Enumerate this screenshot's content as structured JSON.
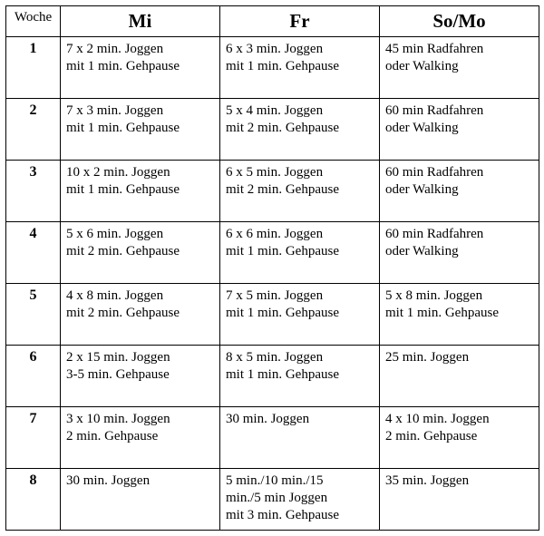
{
  "columns": {
    "woche": "Woche",
    "mi": "Mi",
    "fr": "Fr",
    "somo": "So/Mo"
  },
  "rows": [
    {
      "week": "1",
      "mi": {
        "l1": "7 x 2 min. Joggen",
        "l2": "mit 1 min. Gehpause"
      },
      "fr": {
        "l1": "6 x 3 min. Joggen",
        "l2": "mit 1 min. Gehpause"
      },
      "somo": {
        "l1": "45 min Radfahren",
        "l2": "oder Walking"
      }
    },
    {
      "week": "2",
      "mi": {
        "l1": "7 x 3 min. Joggen",
        "l2": "mit 1 min. Gehpause"
      },
      "fr": {
        "l1": "5 x 4 min. Joggen",
        "l2": "mit 2 min. Gehpause"
      },
      "somo": {
        "l1": "60 min Radfahren",
        "l2": "oder Walking"
      }
    },
    {
      "week": "3",
      "mi": {
        "l1": "10 x 2 min. Joggen",
        "l2": "mit 1 min. Gehpause"
      },
      "fr": {
        "l1": "6 x 5 min. Joggen",
        "l2": "mit 2 min. Gehpause"
      },
      "somo": {
        "l1": "60 min Radfahren",
        "l2": "oder Walking"
      }
    },
    {
      "week": "4",
      "mi": {
        "l1": "5 x 6 min. Joggen",
        "l2": "mit 2 min. Gehpause"
      },
      "fr": {
        "l1": "6 x 6 min. Joggen",
        "l2": "mit 1 min. Gehpause"
      },
      "somo": {
        "l1": "60 min Radfahren",
        "l2": "oder Walking"
      }
    },
    {
      "week": "5",
      "mi": {
        "l1": "4 x 8 min. Joggen",
        "l2": "mit 2 min. Gehpause"
      },
      "fr": {
        "l1": "7 x 5 min. Joggen",
        "l2": "mit 1 min. Gehpause"
      },
      "somo": {
        "l1": "5 x 8 min. Joggen",
        "l2": "mit 1 min. Gehpause"
      }
    },
    {
      "week": "6",
      "mi": {
        "l1": "2 x 15 min. Joggen",
        "l2": "3-5 min. Gehpause"
      },
      "fr": {
        "l1": "8 x 5 min. Joggen",
        "l2": "mit 1 min. Gehpause"
      },
      "somo": {
        "l1": "25 min. Joggen",
        "l2": ""
      }
    },
    {
      "week": "7",
      "mi": {
        "l1": "3 x 10 min. Joggen",
        "l2": "2 min. Gehpause"
      },
      "fr": {
        "l1": "30 min. Joggen",
        "l2": ""
      },
      "somo": {
        "l1": "4 x 10 min. Joggen",
        "l2": "2 min. Gehpause"
      }
    },
    {
      "week": "8",
      "mi": {
        "l1": "30 min. Joggen",
        "l2": ""
      },
      "fr": {
        "l1": "5 min./10 min./15",
        "l2": "min./5 min Joggen",
        "l3": "mit 3 min. Gehpause"
      },
      "somo": {
        "l1": "35 min. Joggen",
        "l2": ""
      }
    }
  ]
}
